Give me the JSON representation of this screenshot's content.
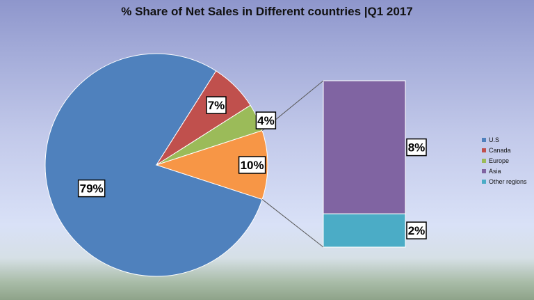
{
  "chart_data": {
    "type": "pie",
    "subtype": "pie-of-bar",
    "title": "% Share of Net Sales in Different countries |Q1 2017",
    "legend_position": "right",
    "pie": {
      "slices": [
        {
          "name": "U.S",
          "value": 79,
          "label": "79%",
          "color": "#4f81bd"
        },
        {
          "name": "Canada",
          "value": 7,
          "label": "7%",
          "color": "#c0504d"
        },
        {
          "name": "Europe",
          "value": 4,
          "label": "4%",
          "color": "#9bbb59"
        },
        {
          "name": "Asia + Other regions",
          "value": 10,
          "label": "10%",
          "color": "#f79646"
        }
      ]
    },
    "bar": {
      "segments": [
        {
          "name": "Asia",
          "value": 8,
          "label": "8%",
          "color": "#8064a2"
        },
        {
          "name": "Other regions",
          "value": 2,
          "label": "2%",
          "color": "#4bacc6"
        }
      ]
    },
    "legend": [
      {
        "name": "U.S",
        "color": "#4f81bd"
      },
      {
        "name": "Canada",
        "color": "#c0504d"
      },
      {
        "name": "Europe",
        "color": "#9bbb59"
      },
      {
        "name": "Asia",
        "color": "#8064a2"
      },
      {
        "name": "Other regions",
        "color": "#4bacc6"
      }
    ]
  }
}
